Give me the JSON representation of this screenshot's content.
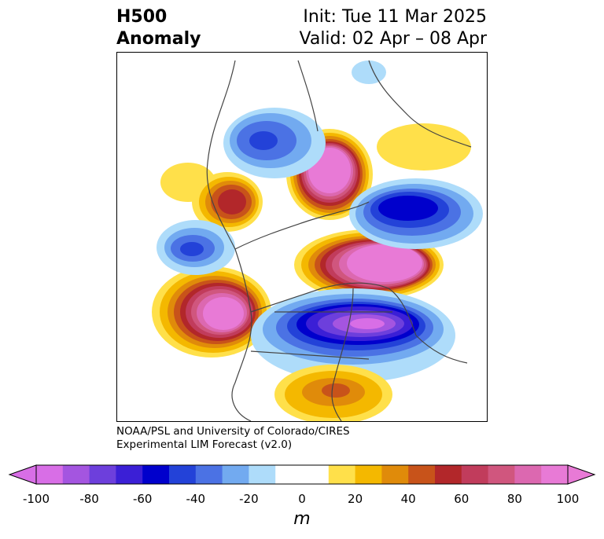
{
  "title": {
    "left_line1": "H500",
    "left_line2": "Anomaly",
    "right_line1": "Init: Tue 11 Mar 2025",
    "right_line2": "Valid: 02 Apr – 08 Apr"
  },
  "credit": {
    "line1": "NOAA/PSL and University of Colorado/CIRES",
    "line2": "Experimental LIM Forecast (v2.0)"
  },
  "colorbar": {
    "unit": "m",
    "ticks": [
      "-100",
      "-80",
      "-60",
      "-40",
      "-20",
      "0",
      "20",
      "40",
      "60",
      "80",
      "100"
    ],
    "colors": [
      "#d86ee6",
      "#a455e0",
      "#6d3fdc",
      "#3b1fd6",
      "#0000cc",
      "#2342d8",
      "#4b72e4",
      "#72aaf0",
      "#aedcfa",
      "#ffffff",
      "#ffffff",
      "#ffe04a",
      "#f4b800",
      "#e08b0a",
      "#c8531a",
      "#b2272a",
      "#c13c5c",
      "#d0567e",
      "#dc68b0",
      "#e87ad6"
    ],
    "range": [
      -100,
      100
    ]
  },
  "anomalies": [
    {
      "name": "pacific-high",
      "sign": "positive",
      "peak": 100
    },
    {
      "name": "canada-arctic-high",
      "sign": "positive",
      "peak": 100
    },
    {
      "name": "siberia-high",
      "sign": "positive",
      "peak": 100
    },
    {
      "name": "east-asia-high",
      "sign": "positive",
      "peak": 60
    },
    {
      "name": "us-low",
      "sign": "negative",
      "peak": -80
    },
    {
      "name": "europe-low",
      "sign": "negative",
      "peak": -60
    },
    {
      "name": "central-asia-low",
      "sign": "negative",
      "peak": -40
    },
    {
      "name": "north-pacific-low",
      "sign": "negative",
      "peak": -40
    },
    {
      "name": "gulf-high",
      "sign": "positive",
      "peak": 40
    }
  ]
}
